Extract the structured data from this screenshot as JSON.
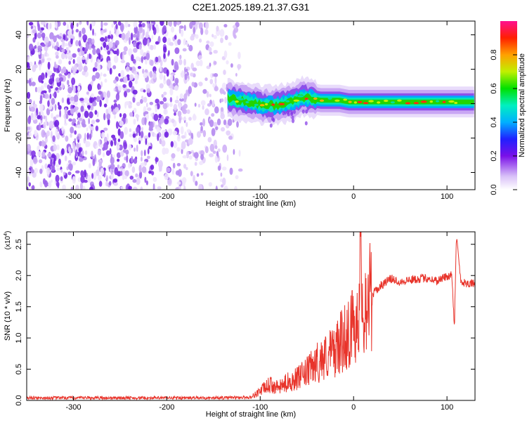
{
  "title": "C2E1.2025.189.21.37.G31",
  "colors": {
    "snr_line": "#e8342b",
    "axis": "#000000",
    "signal_purple": "#7b22e6"
  },
  "chart_data": [
    {
      "type": "heatmap",
      "xlabel": "Height of straight line (km)",
      "ylabel": "Frequency (Hz)",
      "xlim": [
        -350,
        130
      ],
      "ylim": [
        -50,
        48
      ],
      "x_ticks": [
        -300,
        -200,
        -100,
        0,
        100
      ],
      "x_tick_labels": [
        "-300",
        "-200",
        "-100",
        "0",
        "100"
      ],
      "y_ticks": [
        -40,
        -20,
        0,
        20,
        40
      ],
      "y_tick_labels": [
        "-40",
        "-20",
        "0",
        "20",
        "40"
      ],
      "noise_region_x": [
        -350,
        -120
      ],
      "signal_track": {
        "x": [
          -135,
          -125,
          -115,
          -105,
          -95,
          -85,
          -75,
          -65,
          -55,
          -45,
          -35,
          -25,
          -15,
          -5,
          5,
          20,
          40,
          60,
          80,
          100,
          115,
          130
        ],
        "freq": [
          3,
          2,
          1,
          0,
          -1,
          -1,
          0,
          1,
          4,
          3,
          2,
          2,
          2,
          1,
          1,
          1,
          1,
          1,
          1,
          1,
          1,
          1
        ]
      },
      "colorbar": {
        "label": "Normalized spectral amplitude",
        "range": [
          0,
          1
        ],
        "ticks": [
          0.0,
          0.2,
          0.4,
          0.6,
          0.8
        ],
        "tick_labels": [
          "0.0",
          "0.2",
          "0.4",
          "0.6",
          "0.8"
        ]
      },
      "grid": false
    },
    {
      "type": "line",
      "xlabel": "Height of straight line (km)",
      "ylabel": "SNR (10 * v/v)",
      "y_scale_label": "(x10",
      "y_scale_exp": "4",
      "y_scale_close": ")",
      "xlim": [
        -350,
        130
      ],
      "ylim": [
        0,
        27000
      ],
      "x_ticks": [
        -300,
        -200,
        -100,
        0,
        100
      ],
      "x_tick_labels": [
        "-300",
        "-200",
        "-100",
        "0",
        "100"
      ],
      "y_ticks": [
        0,
        5000,
        10000,
        15000,
        20000,
        25000
      ],
      "y_tick_labels": [
        "0.0",
        "0.5",
        "1.0",
        "1.5",
        "2.0",
        "2.5"
      ],
      "series": [
        {
          "x": [
            -350,
            -300,
            -250,
            -200,
            -150,
            -110,
            -100,
            -90,
            -80,
            -70,
            -60,
            -50,
            -40,
            -30,
            -20,
            -15,
            -10,
            -5,
            0,
            5,
            8,
            10,
            15,
            20,
            30,
            40,
            50,
            60,
            70,
            80,
            85,
            90,
            95,
            100,
            105,
            108,
            110,
            115,
            120,
            130
          ],
          "y": [
            400,
            400,
            400,
            400,
            400,
            500,
            1500,
            2500,
            2000,
            3000,
            3500,
            4500,
            6000,
            7000,
            8000,
            9000,
            10000,
            11000,
            12000,
            14000,
            25000,
            15000,
            16000,
            17000,
            18500,
            19500,
            19000,
            19300,
            19500,
            19600,
            19300,
            19200,
            19600,
            19800,
            20200,
            12000,
            26500,
            19000,
            18800,
            18700
          ]
        }
      ],
      "grid": false
    }
  ]
}
